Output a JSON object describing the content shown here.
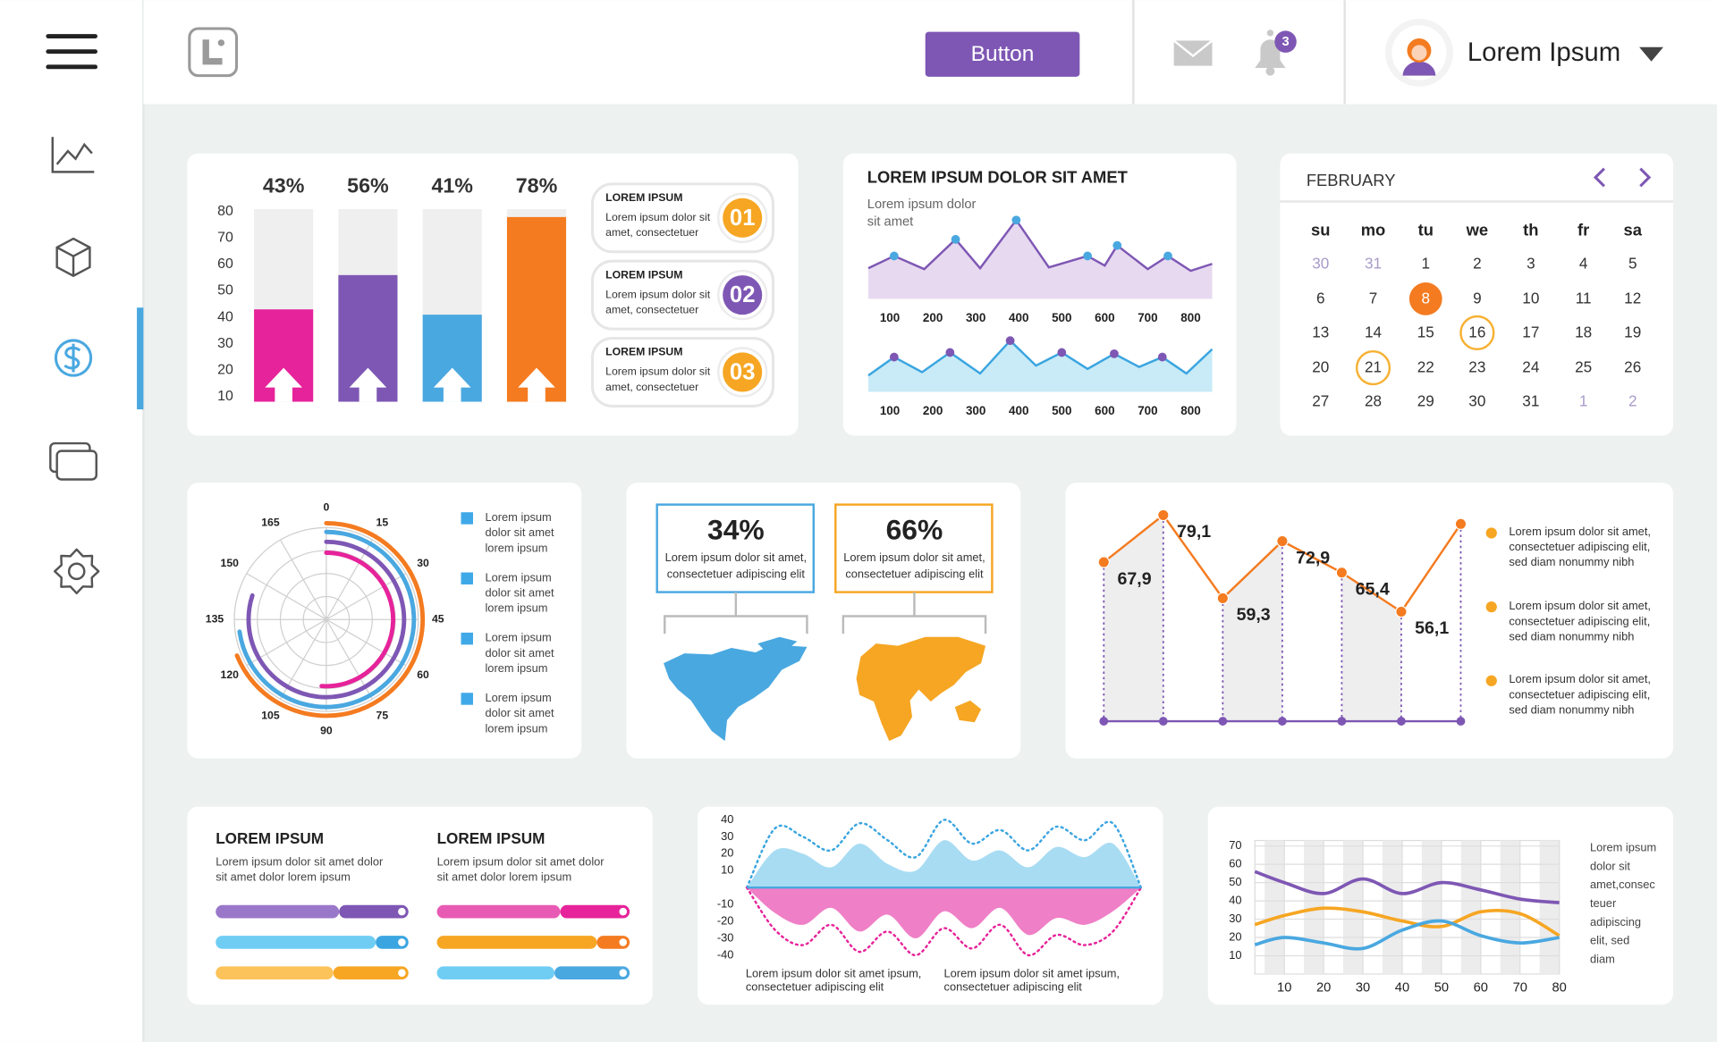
{
  "header": {
    "button": "Button",
    "notification_count": "3",
    "user_name": "Lorem Ipsum"
  },
  "bar_legend": [
    {
      "title": "LOREM IPSUM",
      "text": [
        "Lorem ipsum dolor sit",
        "amet, consectetuer"
      ],
      "badge": "01",
      "color": "#f6a623"
    },
    {
      "title": "LOREM IPSUM",
      "text": [
        "Lorem ipsum dolor sit",
        "amet, consectetuer"
      ],
      "badge": "02",
      "color": "#7e57b4"
    },
    {
      "title": "LOREM IPSUM",
      "text": [
        "Lorem ipsum dolor sit",
        "amet, consectetuer"
      ],
      "badge": "03",
      "color": "#f6a623"
    }
  ],
  "calendar": {
    "month": "FEBRUARY",
    "weekdays": [
      "su",
      "mo",
      "tu",
      "we",
      "th",
      "fr",
      "sa"
    ],
    "weeks": [
      [
        30,
        31,
        1,
        2,
        3,
        4,
        5
      ],
      [
        6,
        7,
        8,
        9,
        10,
        11,
        12
      ],
      [
        13,
        14,
        15,
        16,
        17,
        18,
        19
      ],
      [
        20,
        21,
        22,
        23,
        24,
        25,
        26
      ],
      [
        27,
        28,
        29,
        30,
        31,
        1,
        2
      ]
    ],
    "selected_day": 8,
    "marked_days": [
      16,
      21
    ],
    "selected_color": "#f47b20",
    "marked_color": "#f6b133"
  },
  "map_stats": [
    {
      "label": "34%",
      "text": [
        "Lorem ipsum dolor sit amet,",
        "consectetuer adipiscing elit"
      ],
      "color": "#4aa8e0"
    },
    {
      "label": "66%",
      "text": [
        "Lorem ipsum dolor sit amet,",
        "consectetuer adipiscing elit"
      ],
      "color": "#f6a623"
    }
  ],
  "chart_data": [
    {
      "type": "bar",
      "values": [
        43,
        56,
        41,
        78
      ],
      "value_labels": [
        "43%",
        "56%",
        "41%",
        "78%"
      ],
      "colors": [
        "#e6239a",
        "#7e57b4",
        "#4aa8e0",
        "#f47b20"
      ],
      "ylim": [
        8,
        81
      ],
      "yticks": [
        10,
        20,
        30,
        40,
        50,
        60,
        70,
        80
      ]
    },
    {
      "type": "area",
      "title": "LOREM IPSUM DOLOR SIT AMET",
      "subtitle": [
        "Lorem ipsum dolor",
        "sit amet"
      ],
      "x": [
        50,
        110,
        180,
        253,
        310,
        394,
        470,
        560,
        600,
        629,
        700,
        747,
        800,
        850
      ],
      "values": [
        35,
        49,
        34,
        68,
        35,
        90,
        36,
        49,
        38,
        61,
        34,
        49,
        32,
        40
      ],
      "color": "#7e57b4",
      "fill": "#e7d9f0",
      "marker_color": "#4aa8e0",
      "xlim": [
        50,
        850
      ],
      "xticks": [
        100,
        200,
        300,
        400,
        500,
        600,
        700,
        800
      ],
      "ylim": [
        0,
        100
      ]
    },
    {
      "type": "area",
      "x": [
        50,
        110,
        175,
        240,
        310,
        380,
        440,
        500,
        560,
        622,
        680,
        734,
        790,
        850
      ],
      "values": [
        25,
        53,
        30,
        60,
        28,
        78,
        40,
        60,
        35,
        58,
        38,
        53,
        28,
        65
      ],
      "color": "#3aa5e0",
      "fill": "#c8ebf7",
      "marker_color": "#7e57b4",
      "xlim": [
        50,
        850
      ],
      "xticks": [
        100,
        200,
        300,
        400,
        500,
        600,
        700,
        800
      ],
      "ylim": [
        0,
        100
      ]
    },
    {
      "type": "radial",
      "lim": [
        0,
        180
      ],
      "ticks": [
        0,
        15,
        30,
        45,
        60,
        75,
        90,
        105,
        120,
        135,
        150,
        165
      ],
      "legend_color": "#3fa9e8",
      "series": [
        {
          "name": "Lorem ipsum dolor sit amet lorem ipsum",
          "color": "#f47b20",
          "value": 124
        },
        {
          "name": "Lorem ipsum dolor sit amet lorem ipsum",
          "color": "#4aa8e0",
          "value": 131
        },
        {
          "name": "Lorem ipsum dolor sit amet lorem ipsum",
          "color": "#7e57b4",
          "value": 144
        },
        {
          "name": "Lorem ipsum dolor sit amet lorem ipsum",
          "color": "#e6239a",
          "value": 92
        }
      ]
    },
    {
      "type": "line",
      "values": [
        67.9,
        79.1,
        59.3,
        72.9,
        65.4,
        56.1,
        77
      ],
      "value_labels": [
        "67,9",
        "79,1",
        "59,3",
        "72,9",
        "65,4",
        "56,1",
        null
      ],
      "color": "#f47b20",
      "marker_color": "#7e57b4",
      "ylim": [
        30,
        85
      ],
      "note_color": "#f6a623",
      "notes": [
        "Lorem ipsum dolor sit amet, consectetuer adipiscing elit, sed diam nonummy nibh",
        "Lorem ipsum dolor sit amet, consectetuer adipiscing elit, sed diam nonummy nibh",
        "Lorem ipsum dolor sit amet, consectetuer adipiscing elit, sed diam nonummy nibh"
      ]
    },
    {
      "type": "wave",
      "ylim": [
        -44,
        44
      ],
      "yticks": [
        40,
        30,
        20,
        10,
        -10,
        -20,
        -30,
        -40
      ],
      "axis_color": "#4aa8e0",
      "series": [
        {
          "color": "#a8dcf3",
          "style": "fill",
          "values": [
            0,
            22,
            20,
            12,
            26,
            14,
            10,
            28,
            16,
            22,
            12,
            24,
            18,
            26,
            0
          ]
        },
        {
          "color": "#3aa5e0",
          "style": "dotted",
          "values": [
            0,
            35,
            30,
            22,
            38,
            28,
            18,
            40,
            26,
            34,
            22,
            36,
            28,
            38,
            0
          ]
        },
        {
          "color": "#ef7fc6",
          "style": "fill",
          "values": [
            0,
            -15,
            -22,
            -12,
            -26,
            -16,
            -30,
            -14,
            -24,
            -12,
            -28,
            -18,
            -22,
            -14,
            0
          ]
        },
        {
          "color": "#e6239a",
          "style": "dotted",
          "values": [
            0,
            -25,
            -34,
            -22,
            -38,
            -26,
            -40,
            -24,
            -36,
            -22,
            -40,
            -28,
            -34,
            -26,
            0
          ]
        }
      ],
      "captions": [
        "Lorem ipsum dolor sit amet ipsum, consectetuer adipiscing elit",
        "Lorem ipsum dolor sit amet ipsum, consectetuer adipiscing elit"
      ]
    },
    {
      "type": "multiline",
      "x": [
        2.5,
        10,
        20,
        30,
        40,
        50,
        60,
        70,
        80
      ],
      "xlim": [
        2.5,
        80
      ],
      "xticks": [
        10,
        20,
        30,
        40,
        50,
        60,
        70,
        80
      ],
      "ylim": [
        0,
        73
      ],
      "yticks": [
        10,
        20,
        30,
        40,
        50,
        60,
        70
      ],
      "series": [
        {
          "color": "#7e57b4",
          "values": [
            56,
            50,
            44,
            52,
            44,
            50,
            46,
            41,
            39
          ]
        },
        {
          "color": "#f6a623",
          "values": [
            27,
            32,
            36,
            34,
            29,
            26,
            34,
            33,
            21
          ]
        },
        {
          "color": "#4aa8e0",
          "values": [
            16,
            20,
            17,
            14,
            24,
            29,
            21,
            17,
            20
          ]
        }
      ],
      "note": [
        "Lorem ipsum",
        "dolor sit",
        "amet,consec",
        "teuer",
        "adipiscing",
        "elit, sed",
        "diam"
      ]
    },
    {
      "type": "progress",
      "xlim": [
        0,
        100
      ],
      "columns": [
        {
          "title": "LOREM IPSUM",
          "text": [
            "Lorem ipsum dolor sit amet dolor",
            "sit amet dolor lorem ipsum"
          ],
          "bars": [
            {
              "colors": [
                "#9a78c9",
                "#7e57b4"
              ],
              "values": [
                64,
                36
              ]
            },
            {
              "colors": [
                "#6fcdf4",
                "#3aa5e0"
              ],
              "values": [
                83,
                17
              ]
            },
            {
              "colors": [
                "#fcc35a",
                "#f6a623"
              ],
              "values": [
                61,
                39
              ]
            }
          ]
        },
        {
          "title": "LOREM IPSUM",
          "text": [
            "Lorem ipsum dolor sit amet dolor",
            "sit amet dolor lorem ipsum"
          ],
          "bars": [
            {
              "colors": [
                "#e85bb5",
                "#e6239a"
              ],
              "values": [
                64,
                36
              ]
            },
            {
              "colors": [
                "#f6a623",
                "#f47b20"
              ],
              "values": [
                83,
                17
              ]
            },
            {
              "colors": [
                "#6fcdf4",
                "#4aa8e0"
              ],
              "values": [
                61,
                39
              ]
            }
          ]
        }
      ]
    }
  ]
}
